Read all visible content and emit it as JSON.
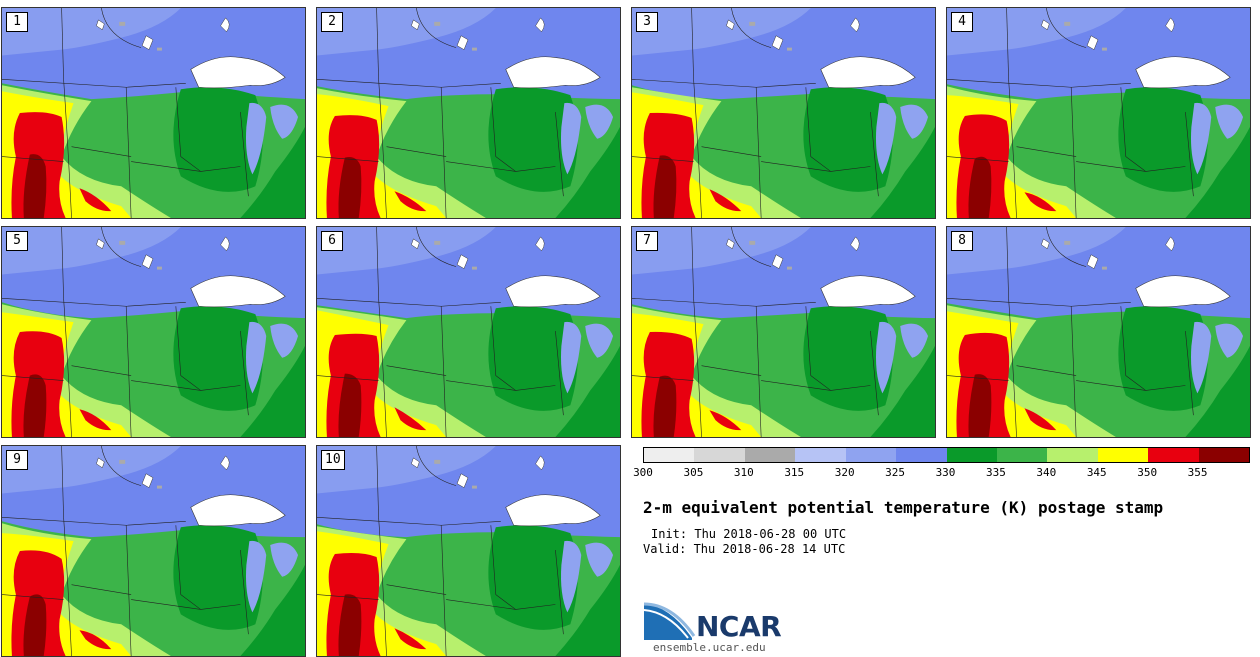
{
  "panels": [
    {
      "label": "1"
    },
    {
      "label": "2"
    },
    {
      "label": "3"
    },
    {
      "label": "4"
    },
    {
      "label": "5"
    },
    {
      "label": "6"
    },
    {
      "label": "7"
    },
    {
      "label": "8"
    },
    {
      "label": "9"
    },
    {
      "label": "10"
    }
  ],
  "colorbar": {
    "ticks": [
      "300",
      "305",
      "310",
      "315",
      "320",
      "325",
      "330",
      "335",
      "340",
      "345",
      "350",
      "355"
    ],
    "colors": [
      "#eeeeee",
      "#d7d7d7",
      "#aaaaaa",
      "#b6c3f5",
      "#8fa3f0",
      "#6f86ee",
      "#0a9a2a",
      "#3cb449",
      "#b7f06d",
      "#ffff00",
      "#e8000f",
      "#8b0000"
    ]
  },
  "title": "2-m equivalent potential temperature (K) postage stamp",
  "init": "Init: Thu 2018-06-28 00 UTC",
  "valid": "Valid: Thu 2018-06-28 14 UTC",
  "logo": {
    "text": "NCAR",
    "website": "ensemble.ucar.edu"
  }
}
